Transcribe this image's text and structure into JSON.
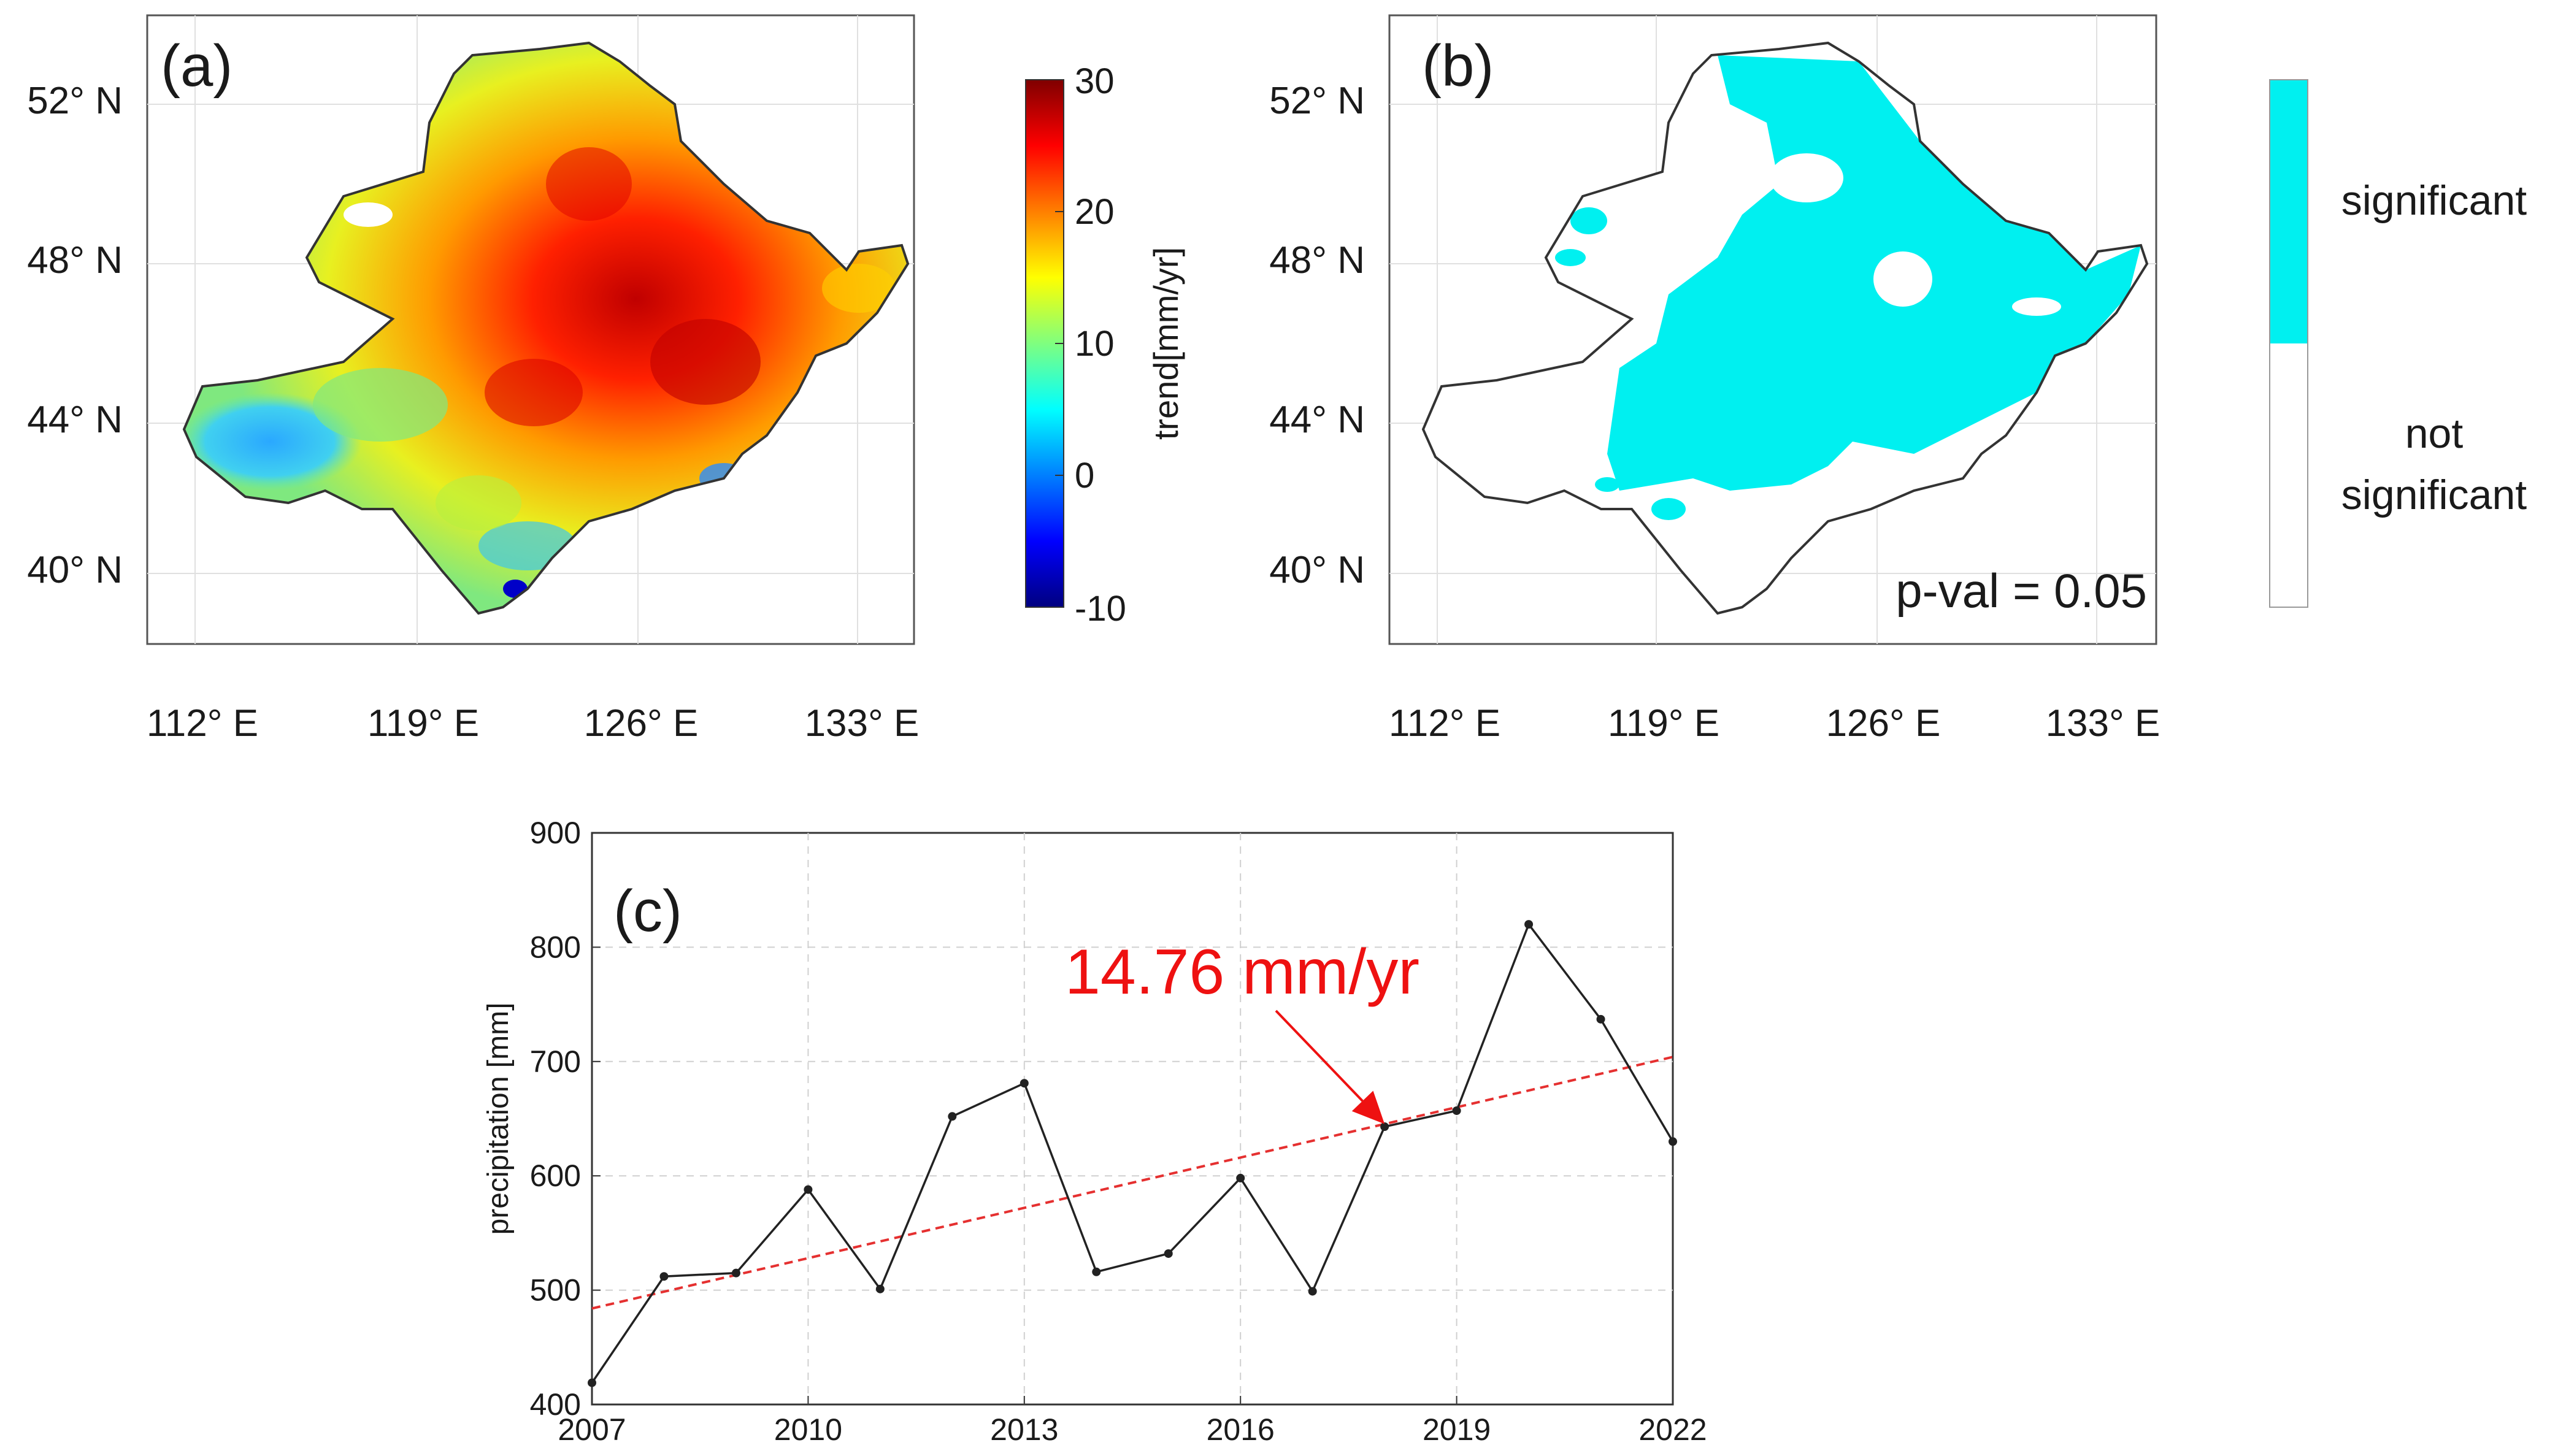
{
  "panel_a": {
    "label": "(a)",
    "lat_ticks": [
      "52° N",
      "48° N",
      "44° N",
      "40° N"
    ],
    "lon_ticks": [
      "112° E",
      "119° E",
      "126° E",
      "133° E"
    ],
    "colorbar": {
      "label": "trend[mm/yr]",
      "tick_labels": [
        "30",
        "20",
        "10",
        "0",
        "-10"
      ],
      "range": [
        -10,
        30
      ],
      "colors": [
        "#00007f",
        "#0000ff",
        "#007fff",
        "#00ffff",
        "#7fff7f",
        "#ffff00",
        "#ff7f00",
        "#ff0000",
        "#7f0000"
      ]
    }
  },
  "panel_b": {
    "label": "(b)",
    "lat_ticks": [
      "52° N",
      "48° N",
      "44° N",
      "40° N"
    ],
    "lon_ticks": [
      "112° E",
      "119° E",
      "126° E",
      "133° E"
    ],
    "annotation": "p-val = 0.05",
    "legend": {
      "significant_label": "significant",
      "not_significant_line1": "not",
      "not_significant_line2": "significant",
      "significant_color": "#00f0f0",
      "not_significant_color": "#ffffff"
    }
  },
  "chart_data": {
    "type": "line",
    "panel_label": "(c)",
    "title": "",
    "xlabel": "",
    "ylabel": "precipitation [mm]",
    "x": [
      2007,
      2008,
      2009,
      2010,
      2011,
      2012,
      2013,
      2014,
      2015,
      2016,
      2017,
      2018,
      2019,
      2020,
      2021,
      2022
    ],
    "series": [
      {
        "name": "precipitation",
        "values": [
          419,
          512,
          515,
          588,
          501,
          652,
          681,
          516,
          532,
          598,
          499,
          643,
          657,
          820,
          737,
          630
        ],
        "color": "#222222"
      },
      {
        "name": "linear trend",
        "trend_start": [
          2007,
          484
        ],
        "trend_end": [
          2022,
          704
        ],
        "color": "#e53030"
      }
    ],
    "xlim": [
      2007,
      2022
    ],
    "ylim": [
      400,
      900
    ],
    "xticks": [
      2007,
      2010,
      2013,
      2016,
      2019,
      2022
    ],
    "yticks": [
      400,
      500,
      600,
      700,
      800,
      900
    ],
    "grid": true,
    "annotation": {
      "text": "14.76 mm/yr",
      "points_to_year": 2018,
      "color": "#ee1111"
    }
  }
}
